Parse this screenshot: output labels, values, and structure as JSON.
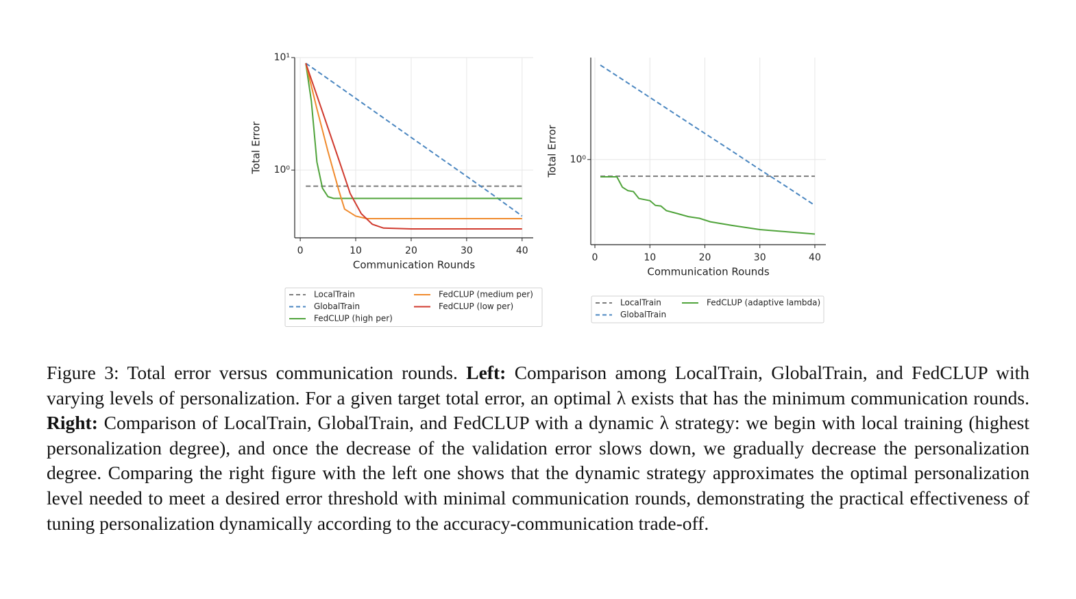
{
  "chart_data": [
    {
      "type": "line",
      "ylabel": "Total Error",
      "xlabel": "Communication Rounds",
      "log_y": true,
      "grid": true,
      "xlim": [
        -1,
        42
      ],
      "xticks": [
        0,
        10,
        20,
        30,
        40
      ],
      "ylim": [
        0.25,
        10
      ],
      "yticks": [
        {
          "value": 1,
          "label": "10⁰"
        },
        {
          "value": 10,
          "label": "10¹"
        }
      ],
      "legend": "below",
      "legend_columns": 2,
      "series": [
        {
          "name": "LocalTrain",
          "color": "#7a7a7a",
          "dashed": true,
          "x": [
            1,
            40
          ],
          "values": [
            0.72,
            0.72
          ]
        },
        {
          "name": "GlobalTrain",
          "color": "#4a86c0",
          "dashed": true,
          "x": [
            1,
            5,
            10,
            15,
            20,
            25,
            30,
            35,
            40
          ],
          "values": [
            8.9,
            6.47,
            4.34,
            2.91,
            1.95,
            1.31,
            0.88,
            0.59,
            0.39
          ]
        },
        {
          "name": "FedCLUP (high per)",
          "color": "#4fa33a",
          "dashed": false,
          "x": [
            1,
            2,
            3,
            4,
            5,
            6,
            40
          ],
          "values": [
            8.9,
            4.1,
            1.18,
            0.69,
            0.58,
            0.56,
            0.56
          ]
        },
        {
          "name": "FedCLUP (medium per)",
          "color": "#f08a2c",
          "dashed": false,
          "x": [
            1,
            3,
            5,
            7,
            8,
            10,
            12,
            40
          ],
          "values": [
            8.9,
            3.5,
            1.46,
            0.65,
            0.45,
            0.39,
            0.37,
            0.37
          ]
        },
        {
          "name": "FedCLUP (low per)",
          "color": "#d03a2e",
          "dashed": false,
          "x": [
            1,
            4,
            7,
            9,
            11,
            13,
            15,
            20,
            40
          ],
          "values": [
            8.9,
            3.3,
            1.22,
            0.62,
            0.41,
            0.33,
            0.305,
            0.3,
            0.3
          ]
        }
      ]
    },
    {
      "type": "line",
      "ylabel": "Total Error",
      "xlabel": "Communication Rounds",
      "log_y": true,
      "grid": true,
      "xlim": [
        -0.75,
        42
      ],
      "xticks": [
        0,
        10,
        20,
        30,
        40
      ],
      "ylim": [
        0.15,
        9.7
      ],
      "yticks": [
        {
          "value": 1,
          "label": "10⁰"
        }
      ],
      "legend": "below",
      "legend_columns": 2,
      "series": [
        {
          "name": "LocalTrain",
          "color": "#7a7a7a",
          "dashed": true,
          "x": [
            1,
            40
          ],
          "values": [
            0.69,
            0.69
          ]
        },
        {
          "name": "GlobalTrain",
          "color": "#4a86c0",
          "dashed": true,
          "x": [
            1,
            5,
            10,
            15,
            20,
            25,
            30,
            35,
            40
          ],
          "values": [
            8.2,
            5.96,
            3.99,
            2.67,
            1.79,
            1.2,
            0.8,
            0.54,
            0.36
          ]
        },
        {
          "name": "FedCLUP (adaptive lambda)",
          "color": "#4fa33a",
          "dashed": false,
          "x": [
            1,
            4,
            5,
            6,
            7,
            8,
            9,
            10,
            11,
            12,
            13,
            15,
            17,
            19,
            21,
            25,
            30,
            35,
            40
          ],
          "values": [
            0.68,
            0.68,
            0.54,
            0.5,
            0.49,
            0.42,
            0.41,
            0.4,
            0.36,
            0.355,
            0.32,
            0.3,
            0.28,
            0.27,
            0.25,
            0.23,
            0.21,
            0.2,
            0.19
          ]
        }
      ]
    }
  ],
  "caption": {
    "intro": "Figure 3: Total error versus communication rounds.",
    "left_label": "Left:",
    "left_text": " Comparison among LocalTrain, GlobalTrain, and FedCLUP with varying levels of personalization. For a given target total error, an optimal λ exists that has the minimum communication rounds.",
    "right_label": "Right:",
    "right_text": " Comparison of LocalTrain, GlobalTrain, and FedCLUP with a dynamic λ strategy: we begin with local training (highest personalization degree), and once the decrease of the validation error slows down, we gradually decrease the personalization degree. Comparing the right figure with the left one shows that the dynamic strategy approximates the optimal personalization level needed to meet a desired error threshold with minimal communication rounds, demonstrating the practical effectiveness of tuning personalization dynamically according to the accuracy-communication trade-off."
  }
}
